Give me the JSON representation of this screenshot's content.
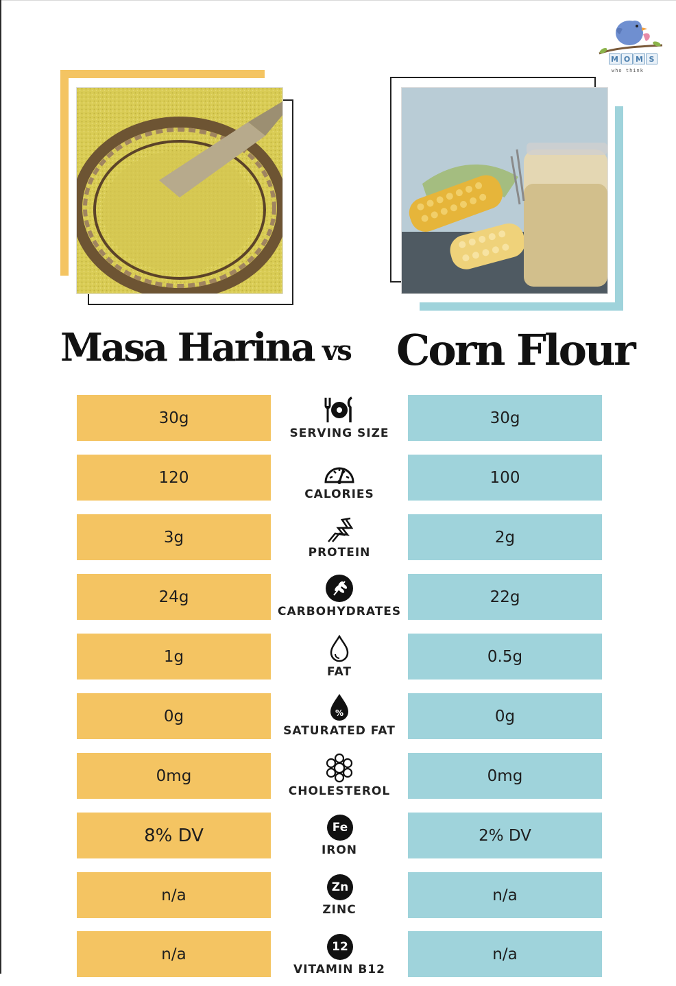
{
  "logo": {
    "letters": [
      "M",
      "O",
      "M",
      "S"
    ],
    "tagline": "who think"
  },
  "left": {
    "title": "Masa Harina",
    "color": "#f4c462"
  },
  "right": {
    "title": "Corn Flour",
    "color": "#9fd3db"
  },
  "vs_label": "vs",
  "rows": [
    {
      "label": "SERVING SIZE",
      "icon": "utensils-plate-icon",
      "masa": "30g",
      "corn": "30g"
    },
    {
      "label": "CALORIES",
      "icon": "gauge-icon",
      "masa": "120",
      "corn": "100"
    },
    {
      "label": "PROTEIN",
      "icon": "protein-chain-icon",
      "masa": "3g",
      "corn": "2g"
    },
    {
      "label": "CARBOHYDRATES",
      "icon": "wheat-icon",
      "masa": "24g",
      "corn": "22g"
    },
    {
      "label": "FAT",
      "icon": "drop-icon",
      "masa": "1g",
      "corn": "0.5g"
    },
    {
      "label": "SATURATED FAT",
      "icon": "percent-drop-icon",
      "masa": "0g",
      "corn": "0g"
    },
    {
      "label": "CHOLESTEROL",
      "icon": "molecule-icon",
      "masa": "0mg",
      "corn": "0mg"
    },
    {
      "label": "IRON",
      "icon": "fe-badge-icon",
      "badge": "Fe",
      "masa": "8% DV",
      "corn": "2% DV"
    },
    {
      "label": "ZINC",
      "icon": "zn-badge-icon",
      "badge": "Zn",
      "masa": "n/a",
      "corn": "n/a"
    },
    {
      "label": "VITAMIN B12",
      "icon": "b12-badge-icon",
      "badge": "12",
      "masa": "n/a",
      "corn": "n/a"
    }
  ]
}
